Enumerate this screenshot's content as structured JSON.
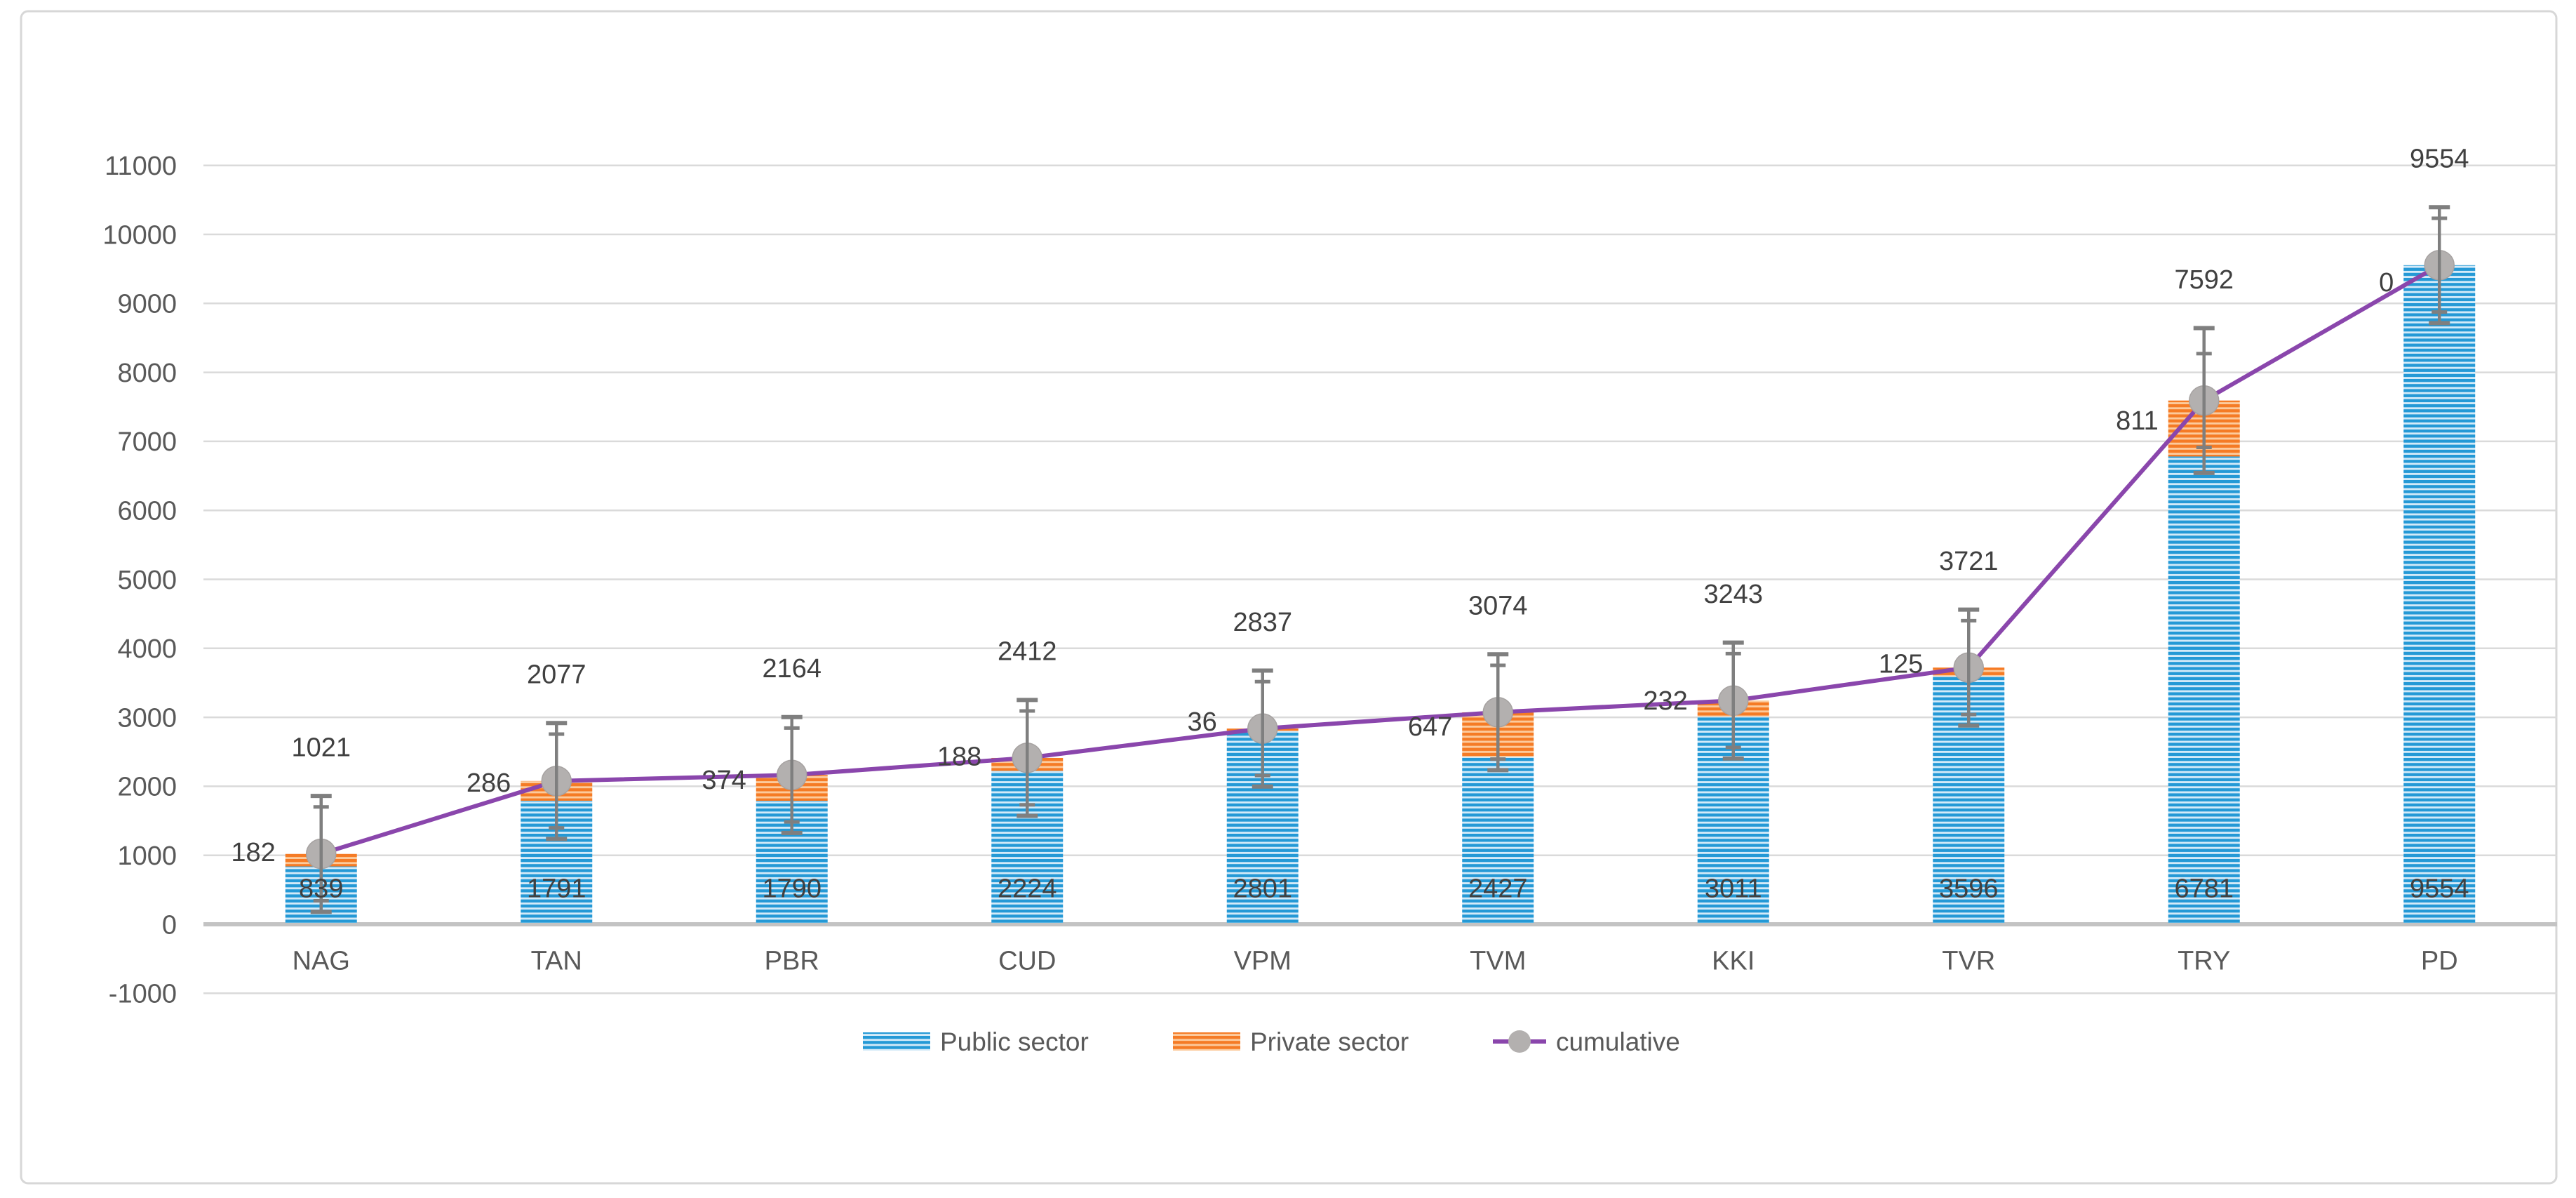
{
  "chart_data": {
    "type": "bar",
    "subtype": "stacked-bars-with-cumulative-line",
    "title": "",
    "categories": [
      "NAG",
      "TAN",
      "PBR",
      "CUD",
      "VPM",
      "TVM",
      "KKI",
      "TVR",
      "TRY",
      "PD"
    ],
    "series": [
      {
        "name": "Public sector",
        "type": "bar",
        "stack": "total",
        "values": [
          839,
          1791,
          1790,
          2224,
          2801,
          2427,
          3011,
          3596,
          6781,
          9554
        ],
        "color": "#2499D6",
        "stripe_color": "#D3EAF8"
      },
      {
        "name": "Private sector",
        "type": "bar",
        "stack": "total",
        "values": [
          182,
          286,
          374,
          188,
          36,
          647,
          232,
          125,
          811,
          0
        ],
        "color": "#F57B25",
        "stripe_color": "#FCCA9C"
      },
      {
        "name": "cumulative",
        "type": "line",
        "values": [
          1021,
          2077,
          2164,
          2412,
          2837,
          3074,
          3243,
          3721,
          7592,
          9554
        ],
        "color": "#8A46AC",
        "marker": "circle",
        "marker_color": "#B3B0AF"
      }
    ],
    "data_label_placement": {
      "public": "inside-bar-near-base",
      "private": "outside-left-of-bar",
      "cumulative": "above-error-bar"
    },
    "error_bars": {
      "on": "cumulative",
      "plus_minus_estimated": [
        840,
        840,
        840,
        840,
        840,
        840,
        840,
        840,
        1050,
        840
      ],
      "inner_tick_estimated": 680
    },
    "y_axis": {
      "min": -1000,
      "max": 11000,
      "step": 1000,
      "tick_labels": [
        "11000",
        "10000",
        "9000",
        "8000",
        "7000",
        "6000",
        "5000",
        "4000",
        "3000",
        "2000",
        "1000",
        "0",
        "-1000"
      ]
    },
    "x_axis": {
      "tick_labels": [
        "NAG",
        "TAN",
        "PBR",
        "CUD",
        "VPM",
        "TVM",
        "KKI",
        "TVR",
        "TRY",
        "PD"
      ]
    },
    "legend": {
      "position": "bottom",
      "entries": [
        {
          "label": "Public sector",
          "swatch": "blue-striped-rect"
        },
        {
          "label": "Private sector",
          "swatch": "orange-striped-rect"
        },
        {
          "label": "cumulative",
          "swatch": "purple-line-with-gray-dot"
        }
      ]
    },
    "grid": {
      "horizontal": true,
      "color": "#DADADA",
      "zero_line_color": "#C3C3C3"
    },
    "colors": {
      "value_label_text": "#404040",
      "axis_text": "#595959",
      "error_bar": "#7F7F7F",
      "chart_border": "#D7D7D7",
      "background": "#FFFFFF"
    }
  }
}
